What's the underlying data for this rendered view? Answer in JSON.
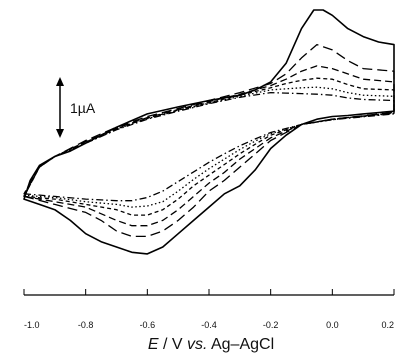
{
  "chart_data": {
    "type": "line",
    "title": "",
    "xlabel": {
      "italic_symbol": "E",
      "unit_text": " / V ",
      "italic_vs": "vs.",
      "reference": " Ag–AgCl"
    },
    "ylabel": "",
    "xlim": [
      -1.0,
      0.2
    ],
    "x_ticks": [
      -1.0,
      -0.8,
      -0.6,
      -0.4,
      -0.2,
      0.0,
      0.2
    ],
    "x_tick_labels": [
      "-1.0",
      "-0.8",
      "-0.6",
      "-0.4",
      "-0.2",
      "0.0",
      "0.2"
    ],
    "ylim": [
      -2.4,
      2.2
    ],
    "y_unit": "µA",
    "scale_bar": {
      "label": "1µA",
      "value": 1
    },
    "grid": false,
    "legend": "none",
    "line_color": "#000000",
    "series": [
      {
        "style": "solid",
        "forward": [
          [
            -1.0,
            -1.35
          ],
          [
            -0.95,
            -1.45
          ],
          [
            -0.9,
            -1.55
          ],
          [
            -0.85,
            -1.75
          ],
          [
            -0.8,
            -2.0
          ],
          [
            -0.75,
            -2.15
          ],
          [
            -0.7,
            -2.25
          ],
          [
            -0.65,
            -2.35
          ],
          [
            -0.6,
            -2.38
          ],
          [
            -0.55,
            -2.25
          ],
          [
            -0.5,
            -2.0
          ],
          [
            -0.45,
            -1.75
          ],
          [
            -0.4,
            -1.5
          ],
          [
            -0.35,
            -1.25
          ],
          [
            -0.3,
            -1.1
          ],
          [
            -0.25,
            -0.8
          ],
          [
            -0.2,
            -0.4
          ],
          [
            -0.15,
            -0.15
          ],
          [
            -0.1,
            0.05
          ],
          [
            -0.05,
            0.15
          ],
          [
            0.0,
            0.2
          ],
          [
            0.05,
            0.22
          ],
          [
            0.1,
            0.25
          ],
          [
            0.2,
            0.3
          ]
        ],
        "reverse": [
          [
            0.2,
            1.55
          ],
          [
            0.15,
            1.6
          ],
          [
            0.1,
            1.7
          ],
          [
            0.05,
            1.85
          ],
          [
            0.0,
            2.1
          ],
          [
            -0.03,
            2.2
          ],
          [
            -0.06,
            2.2
          ],
          [
            -0.1,
            1.85
          ],
          [
            -0.15,
            1.2
          ],
          [
            -0.2,
            0.85
          ],
          [
            -0.25,
            0.7
          ],
          [
            -0.3,
            0.6
          ],
          [
            -0.4,
            0.5
          ],
          [
            -0.5,
            0.38
          ],
          [
            -0.6,
            0.25
          ],
          [
            -0.7,
            0.0
          ],
          [
            -0.8,
            -0.3
          ],
          [
            -0.85,
            -0.45
          ],
          [
            -0.9,
            -0.55
          ],
          [
            -0.95,
            -0.72
          ],
          [
            -0.98,
            -1.0
          ],
          [
            -1.0,
            -1.35
          ]
        ]
      },
      {
        "style": "long-dash",
        "forward": [
          [
            -1.0,
            -1.3
          ],
          [
            -0.9,
            -1.45
          ],
          [
            -0.8,
            -1.6
          ],
          [
            -0.75,
            -1.75
          ],
          [
            -0.7,
            -1.95
          ],
          [
            -0.65,
            -2.05
          ],
          [
            -0.6,
            -2.05
          ],
          [
            -0.55,
            -1.95
          ],
          [
            -0.5,
            -1.75
          ],
          [
            -0.45,
            -1.5
          ],
          [
            -0.4,
            -1.2
          ],
          [
            -0.35,
            -1.0
          ],
          [
            -0.3,
            -0.75
          ],
          [
            -0.25,
            -0.5
          ],
          [
            -0.2,
            -0.25
          ],
          [
            -0.1,
            0.05
          ],
          [
            0.0,
            0.15
          ],
          [
            0.2,
            0.28
          ]
        ],
        "reverse": [
          [
            0.2,
            1.05
          ],
          [
            0.1,
            1.1
          ],
          [
            0.05,
            1.25
          ],
          [
            0.0,
            1.45
          ],
          [
            -0.05,
            1.55
          ],
          [
            -0.1,
            1.3
          ],
          [
            -0.15,
            1.0
          ],
          [
            -0.2,
            0.82
          ],
          [
            -0.3,
            0.65
          ],
          [
            -0.4,
            0.5
          ],
          [
            -0.5,
            0.35
          ],
          [
            -0.6,
            0.2
          ],
          [
            -0.7,
            0.0
          ],
          [
            -0.8,
            -0.25
          ],
          [
            -0.9,
            -0.55
          ],
          [
            -0.95,
            -0.75
          ],
          [
            -1.0,
            -1.3
          ]
        ]
      },
      {
        "style": "dash",
        "forward": [
          [
            -1.0,
            -1.3
          ],
          [
            -0.9,
            -1.4
          ],
          [
            -0.8,
            -1.5
          ],
          [
            -0.7,
            -1.75
          ],
          [
            -0.65,
            -1.85
          ],
          [
            -0.6,
            -1.85
          ],
          [
            -0.55,
            -1.75
          ],
          [
            -0.5,
            -1.55
          ],
          [
            -0.45,
            -1.3
          ],
          [
            -0.4,
            -1.05
          ],
          [
            -0.35,
            -0.85
          ],
          [
            -0.3,
            -0.6
          ],
          [
            -0.25,
            -0.4
          ],
          [
            -0.2,
            -0.2
          ],
          [
            -0.1,
            0.05
          ],
          [
            0.0,
            0.15
          ],
          [
            0.2,
            0.27
          ]
        ],
        "reverse": [
          [
            0.2,
            0.85
          ],
          [
            0.1,
            0.9
          ],
          [
            0.05,
            1.0
          ],
          [
            0.0,
            1.1
          ],
          [
            -0.05,
            1.15
          ],
          [
            -0.1,
            1.05
          ],
          [
            -0.15,
            0.9
          ],
          [
            -0.2,
            0.78
          ],
          [
            -0.3,
            0.62
          ],
          [
            -0.4,
            0.48
          ],
          [
            -0.5,
            0.33
          ],
          [
            -0.6,
            0.18
          ],
          [
            -0.7,
            -0.02
          ],
          [
            -0.8,
            -0.27
          ],
          [
            -0.9,
            -0.55
          ],
          [
            -0.95,
            -0.75
          ],
          [
            -1.0,
            -1.3
          ]
        ]
      },
      {
        "style": "short-dash",
        "forward": [
          [
            -1.0,
            -1.3
          ],
          [
            -0.9,
            -1.35
          ],
          [
            -0.8,
            -1.45
          ],
          [
            -0.7,
            -1.55
          ],
          [
            -0.65,
            -1.65
          ],
          [
            -0.6,
            -1.65
          ],
          [
            -0.55,
            -1.55
          ],
          [
            -0.5,
            -1.35
          ],
          [
            -0.45,
            -1.1
          ],
          [
            -0.4,
            -0.9
          ],
          [
            -0.35,
            -0.7
          ],
          [
            -0.3,
            -0.5
          ],
          [
            -0.25,
            -0.32
          ],
          [
            -0.2,
            -0.15
          ],
          [
            -0.1,
            0.05
          ],
          [
            0.0,
            0.15
          ],
          [
            0.2,
            0.27
          ]
        ],
        "reverse": [
          [
            0.2,
            0.7
          ],
          [
            0.1,
            0.72
          ],
          [
            0.05,
            0.8
          ],
          [
            0.0,
            0.9
          ],
          [
            -0.05,
            0.92
          ],
          [
            -0.1,
            0.88
          ],
          [
            -0.15,
            0.82
          ],
          [
            -0.2,
            0.74
          ],
          [
            -0.3,
            0.6
          ],
          [
            -0.4,
            0.46
          ],
          [
            -0.5,
            0.32
          ],
          [
            -0.6,
            0.17
          ],
          [
            -0.7,
            -0.03
          ],
          [
            -0.8,
            -0.28
          ],
          [
            -0.9,
            -0.55
          ],
          [
            -0.95,
            -0.75
          ],
          [
            -1.0,
            -1.3
          ]
        ]
      },
      {
        "style": "dot",
        "forward": [
          [
            -1.0,
            -1.28
          ],
          [
            -0.9,
            -1.32
          ],
          [
            -0.8,
            -1.4
          ],
          [
            -0.7,
            -1.45
          ],
          [
            -0.65,
            -1.5
          ],
          [
            -0.6,
            -1.48
          ],
          [
            -0.55,
            -1.4
          ],
          [
            -0.5,
            -1.2
          ],
          [
            -0.45,
            -0.98
          ],
          [
            -0.4,
            -0.78
          ],
          [
            -0.35,
            -0.6
          ],
          [
            -0.3,
            -0.42
          ],
          [
            -0.25,
            -0.26
          ],
          [
            -0.2,
            -0.12
          ],
          [
            -0.1,
            0.05
          ],
          [
            0.0,
            0.14
          ],
          [
            0.2,
            0.26
          ]
        ],
        "reverse": [
          [
            0.2,
            0.58
          ],
          [
            0.1,
            0.6
          ],
          [
            0.05,
            0.65
          ],
          [
            0.0,
            0.72
          ],
          [
            -0.05,
            0.75
          ],
          [
            -0.1,
            0.74
          ],
          [
            -0.15,
            0.72
          ],
          [
            -0.2,
            0.7
          ],
          [
            -0.3,
            0.58
          ],
          [
            -0.4,
            0.45
          ],
          [
            -0.5,
            0.31
          ],
          [
            -0.6,
            0.16
          ],
          [
            -0.7,
            -0.04
          ],
          [
            -0.8,
            -0.3
          ],
          [
            -0.9,
            -0.55
          ],
          [
            -0.95,
            -0.75
          ],
          [
            -1.0,
            -1.28
          ]
        ]
      },
      {
        "style": "dash-dot",
        "forward": [
          [
            -1.0,
            -1.25
          ],
          [
            -0.9,
            -1.3
          ],
          [
            -0.8,
            -1.35
          ],
          [
            -0.7,
            -1.38
          ],
          [
            -0.65,
            -1.38
          ],
          [
            -0.6,
            -1.32
          ],
          [
            -0.55,
            -1.2
          ],
          [
            -0.5,
            -1.02
          ],
          [
            -0.45,
            -0.84
          ],
          [
            -0.4,
            -0.66
          ],
          [
            -0.35,
            -0.5
          ],
          [
            -0.3,
            -0.35
          ],
          [
            -0.25,
            -0.22
          ],
          [
            -0.2,
            -0.1
          ],
          [
            -0.1,
            0.05
          ],
          [
            0.0,
            0.14
          ],
          [
            0.2,
            0.25
          ]
        ],
        "reverse": [
          [
            0.2,
            0.5
          ],
          [
            0.1,
            0.52
          ],
          [
            0.05,
            0.55
          ],
          [
            0.0,
            0.6
          ],
          [
            -0.05,
            0.62
          ],
          [
            -0.1,
            0.63
          ],
          [
            -0.15,
            0.64
          ],
          [
            -0.2,
            0.65
          ],
          [
            -0.3,
            0.56
          ],
          [
            -0.4,
            0.44
          ],
          [
            -0.5,
            0.3
          ],
          [
            -0.6,
            0.15
          ],
          [
            -0.7,
            -0.05
          ],
          [
            -0.8,
            -0.3
          ],
          [
            -0.9,
            -0.55
          ],
          [
            -0.95,
            -0.75
          ],
          [
            -1.0,
            -1.25
          ]
        ]
      }
    ]
  }
}
